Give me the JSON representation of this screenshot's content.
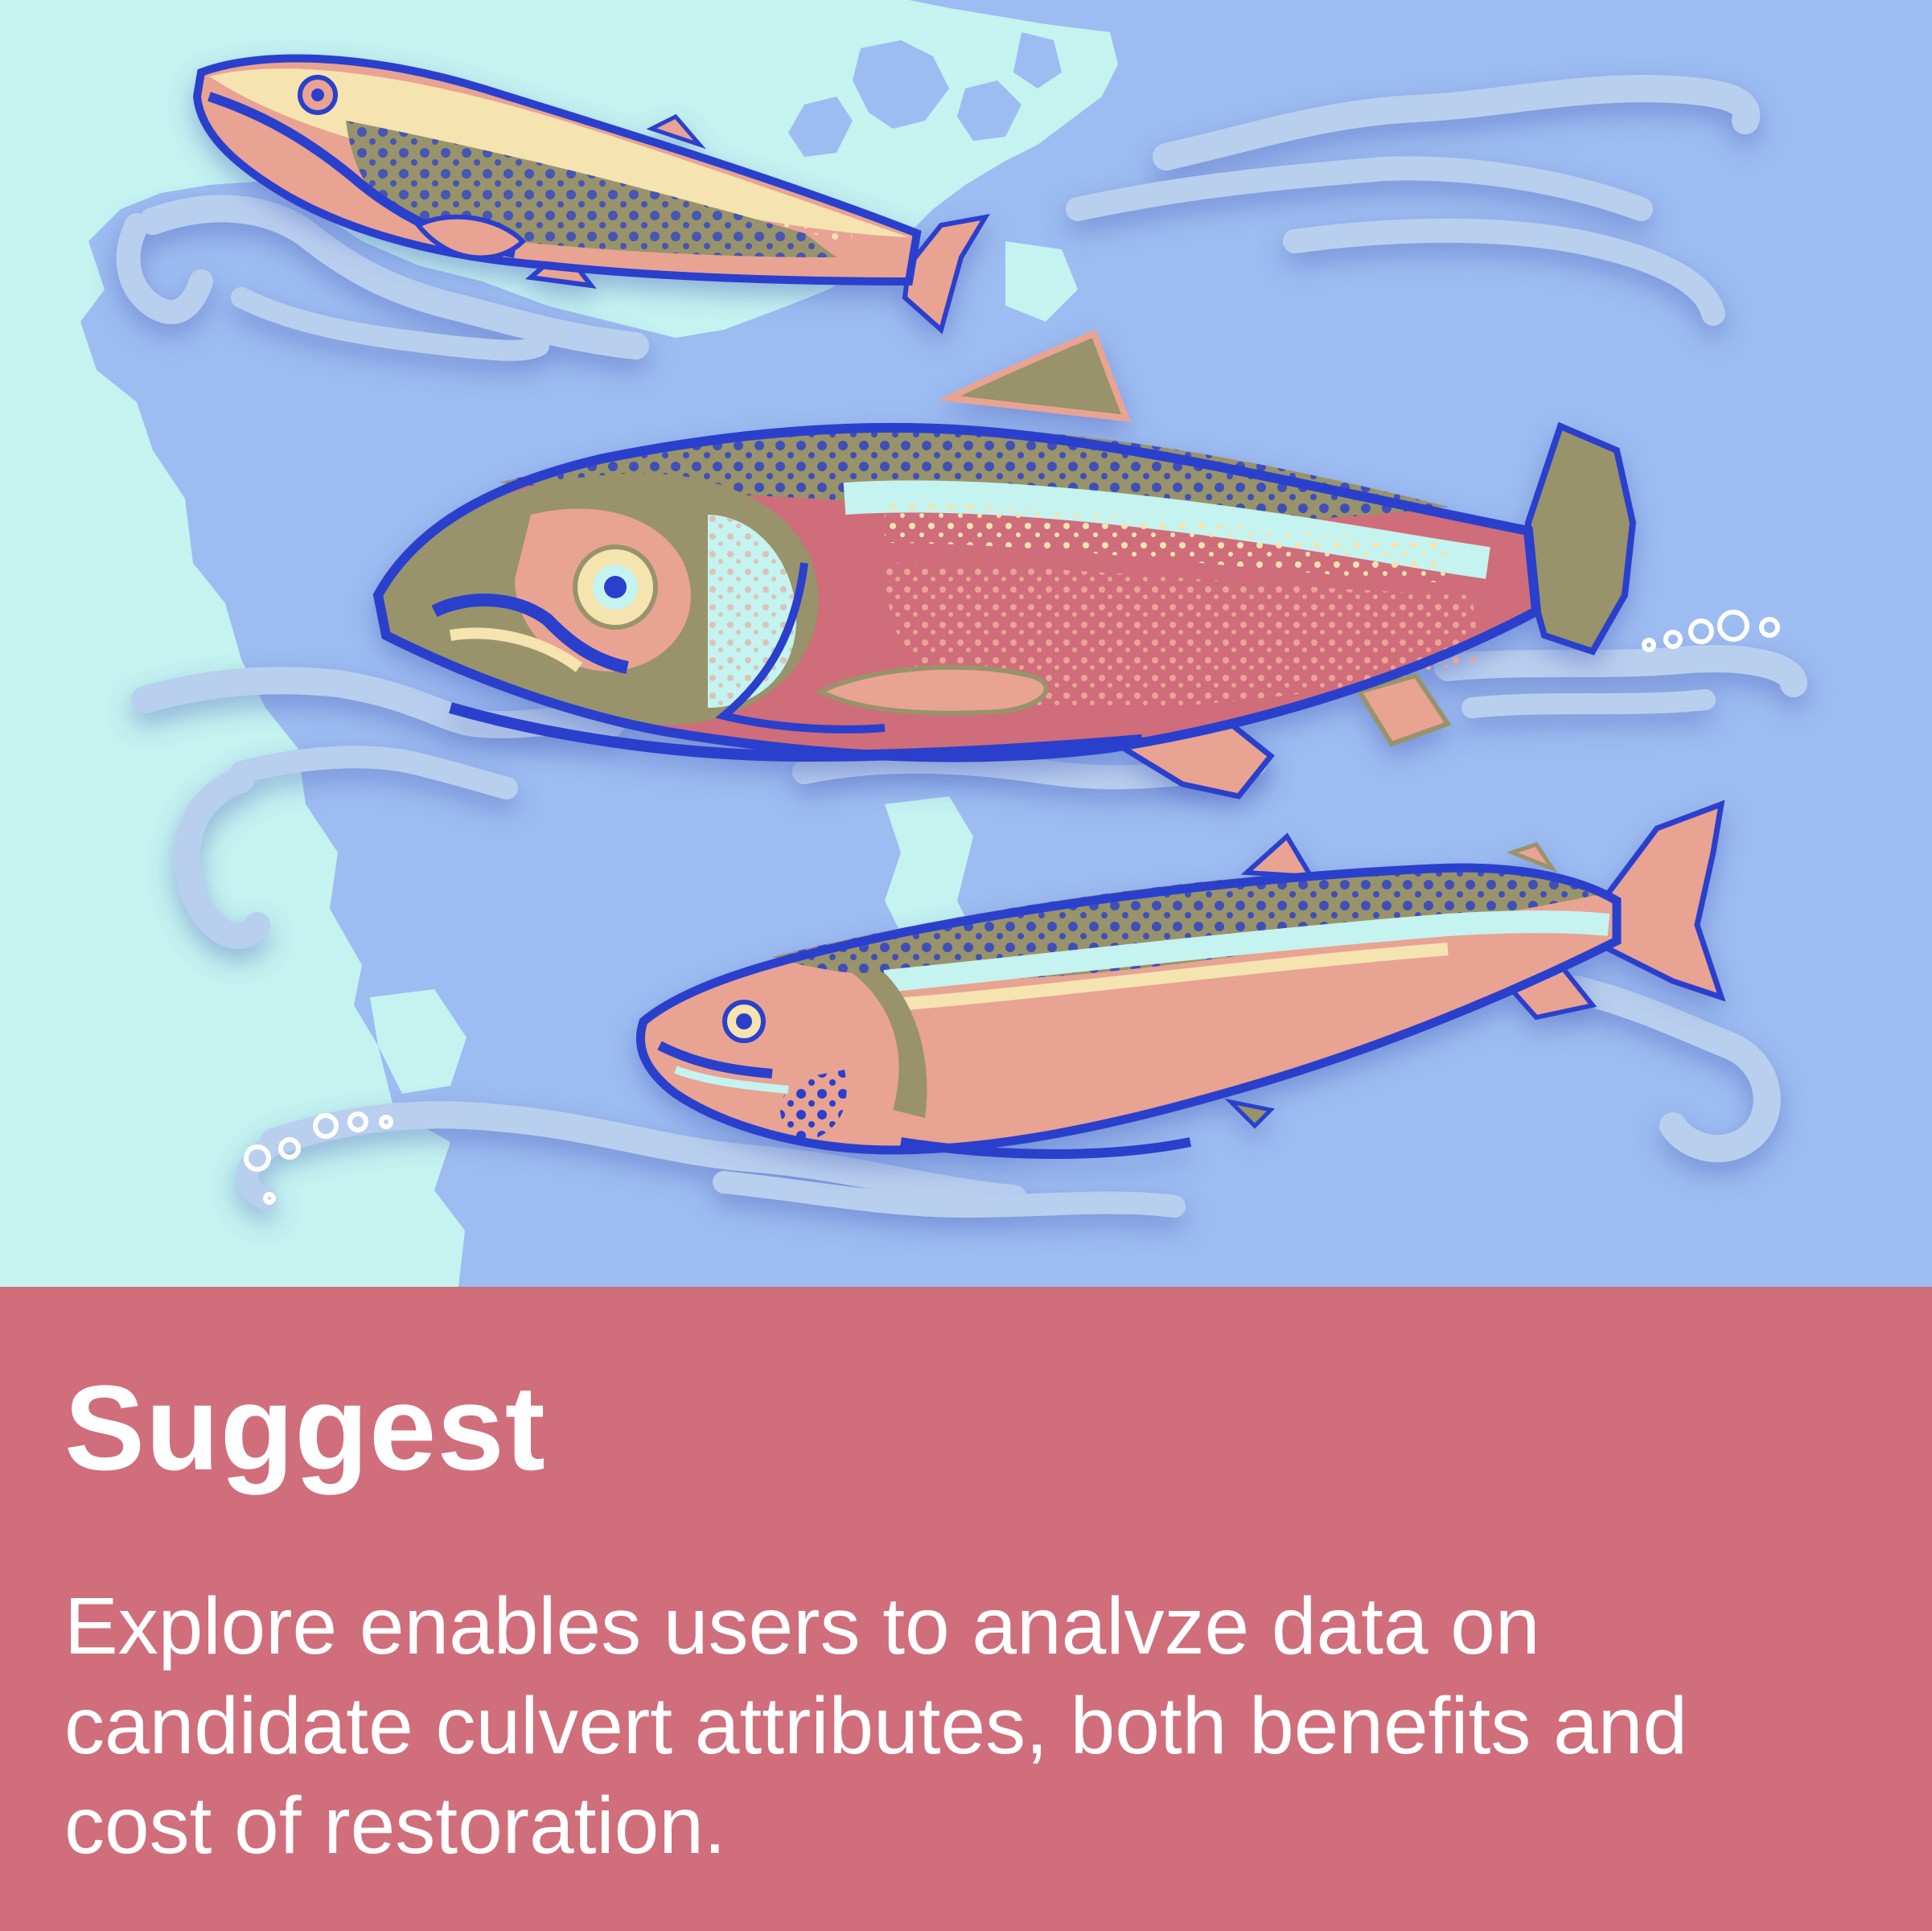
{
  "caption": {
    "title": "Suggest",
    "body": "Explore enables users to analvze data on candidate culvert attributes, both benefits and cost of restoration."
  },
  "illustration": {
    "subject": "three-salmon-icon",
    "map_icon": "coastline-map-icon",
    "water_icon": "water-swirl-icon"
  },
  "colors": {
    "sea_light": "#c4f3f0",
    "land_blue": "#9dbcf1",
    "wave": "#b9cfee",
    "panel": "#d06e7b",
    "fish_outline": "#2a3fcc",
    "fish_olive": "#98936a",
    "fish_pink": "#e8a393",
    "fish_red": "#cf6d7a",
    "fish_cream": "#f5e3b0"
  }
}
